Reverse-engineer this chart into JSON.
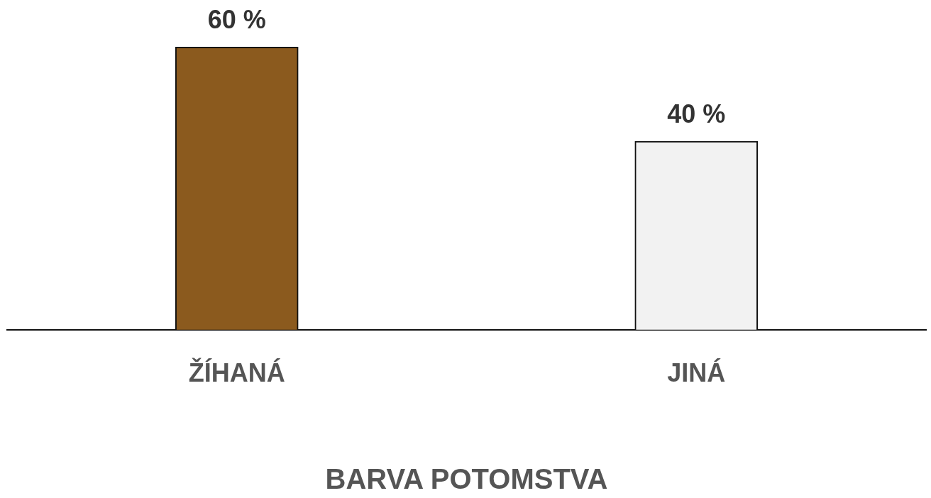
{
  "chart_data": {
    "type": "bar",
    "xlabel": "BARVA POTOMSTVA",
    "categories": [
      "ŽÍHANÁ",
      "JINÁ"
    ],
    "values": [
      60,
      40
    ],
    "colors": [
      "#8b5a1e",
      "#f2f2f2"
    ],
    "value_labels": [
      "60 %",
      "40 %"
    ],
    "grid": false,
    "legend": false
  }
}
